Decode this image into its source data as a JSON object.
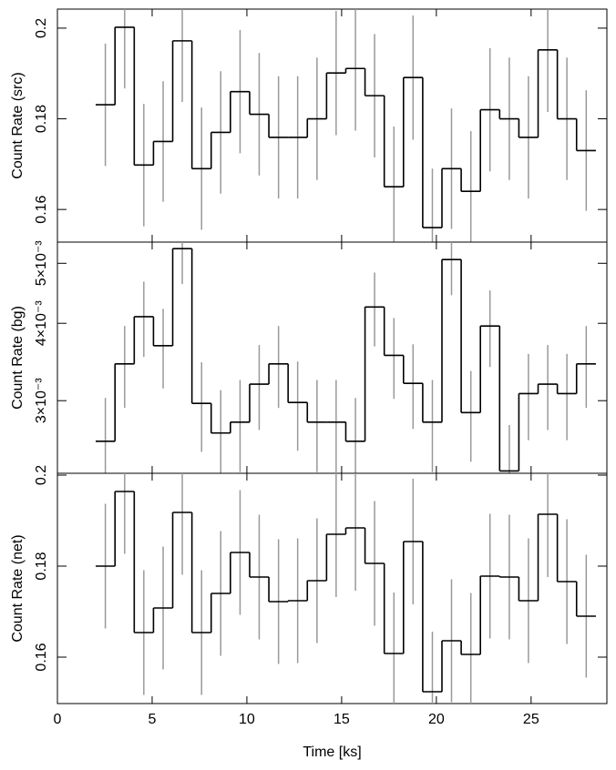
{
  "chart_data": [
    {
      "type": "step",
      "ylabel": "Count Rate (src)",
      "log": false,
      "x": [
        2.53,
        3.55,
        4.56,
        5.58,
        6.59,
        7.61,
        8.62,
        9.64,
        10.65,
        11.67,
        12.68,
        13.7,
        14.71,
        15.73,
        16.74,
        17.76,
        18.77,
        19.79,
        20.8,
        21.82,
        22.83,
        23.85,
        24.86,
        25.88,
        26.89,
        27.91
      ],
      "values": [
        0.1831,
        0.2002,
        0.1698,
        0.175,
        0.1972,
        0.169,
        0.177,
        0.186,
        0.181,
        0.1759,
        0.1759,
        0.18,
        0.1901,
        0.1911,
        0.1851,
        0.165,
        0.1891,
        0.156,
        0.169,
        0.164,
        0.182,
        0.18,
        0.1759,
        0.1952,
        0.18,
        0.173
      ],
      "errors": [
        0.0135,
        0.0135,
        0.0135,
        0.0133,
        0.0135,
        0.0135,
        0.0135,
        0.0136,
        0.0135,
        0.0135,
        0.0135,
        0.0135,
        0.0137,
        0.0137,
        0.0136,
        0.0133,
        0.0137,
        0.013,
        0.0133,
        0.0133,
        0.0136,
        0.0135,
        0.0135,
        0.0137,
        0.0135,
        0.0133
      ],
      "color": "#000000",
      "error_color": "#999999",
      "xlim": [
        0,
        29
      ],
      "xticks": [
        0,
        5,
        10,
        15,
        20,
        25
      ],
      "ylim": [
        0.1528,
        0.2042
      ],
      "yticks": [
        0.16,
        0.18,
        0.2
      ]
    },
    {
      "type": "step",
      "ylabel": "Count Rate (bg)",
      "log": true,
      "x": [
        2.53,
        3.55,
        4.56,
        5.58,
        6.59,
        7.61,
        8.62,
        9.64,
        10.65,
        11.67,
        12.68,
        13.7,
        14.71,
        15.73,
        16.74,
        17.76,
        18.77,
        19.79,
        20.8,
        21.82,
        22.83,
        23.85,
        24.86,
        25.88,
        26.89,
        27.91
      ],
      "values": [
        0.00258,
        0.00344,
        0.0041,
        0.00368,
        0.00528,
        0.00297,
        0.00266,
        0.00277,
        0.00319,
        0.00344,
        0.00298,
        0.00277,
        0.00277,
        0.00258,
        0.00425,
        0.00355,
        0.0032,
        0.00277,
        0.00507,
        0.00287,
        0.00396,
        0.00231,
        0.00308,
        0.00319,
        0.00308,
        0.00344
      ],
      "errors": [
        0.00045,
        0.00052,
        0.00057,
        0.00054,
        0.00065,
        0.00049,
        0.00046,
        0.00047,
        0.0005,
        0.00052,
        0.00049,
        0.00047,
        0.00047,
        0.00045,
        0.00058,
        0.00053,
        0.0005,
        0.00047,
        0.00063,
        0.00048,
        0.00056,
        0.00043,
        0.00049,
        0.0005,
        0.00049,
        0.00052
      ],
      "color": "#000000",
      "error_color": "#999999",
      "xlim": [
        0,
        29
      ],
      "xticks": [
        0,
        5,
        10,
        15,
        20,
        25
      ],
      "ylim": [
        0.00229,
        0.00541
      ],
      "yticks": [
        {
          "value": 0.003,
          "label": "3×10⁻³"
        },
        {
          "value": 0.004,
          "label": "4×10⁻³"
        },
        {
          "value": 0.005,
          "label": "5×10⁻³"
        }
      ]
    },
    {
      "type": "step",
      "ylabel": "Count Rate (net)",
      "log": false,
      "xlabel": "Time [ks]",
      "x": [
        2.53,
        3.55,
        4.56,
        5.58,
        6.59,
        7.61,
        8.62,
        9.64,
        10.65,
        11.67,
        12.68,
        13.7,
        14.71,
        15.73,
        16.74,
        17.76,
        18.77,
        19.79,
        20.8,
        21.82,
        22.83,
        23.85,
        24.86,
        25.88,
        26.89,
        27.91
      ],
      "values": [
        0.18,
        0.1964,
        0.1654,
        0.1708,
        0.1918,
        0.1654,
        0.174,
        0.183,
        0.1776,
        0.1722,
        0.1724,
        0.1768,
        0.187,
        0.1884,
        0.1806,
        0.1608,
        0.1854,
        0.1524,
        0.1636,
        0.1606,
        0.1778,
        0.1776,
        0.1724,
        0.1914,
        0.1766,
        0.169
      ],
      "errors": [
        0.0137,
        0.0137,
        0.0137,
        0.0135,
        0.0137,
        0.0137,
        0.0137,
        0.0137,
        0.0137,
        0.0137,
        0.0137,
        0.0137,
        0.0138,
        0.0138,
        0.0137,
        0.0134,
        0.0138,
        0.0132,
        0.0135,
        0.0135,
        0.0137,
        0.0137,
        0.0137,
        0.0138,
        0.0137,
        0.0135
      ],
      "color": "#000000",
      "error_color": "#999999",
      "xlim": [
        0,
        29
      ],
      "xticks": [
        0,
        5,
        10,
        15,
        20,
        25
      ],
      "ylim": [
        0.1498,
        0.2004
      ],
      "yticks": [
        0.16,
        0.18,
        0.2
      ]
    }
  ]
}
